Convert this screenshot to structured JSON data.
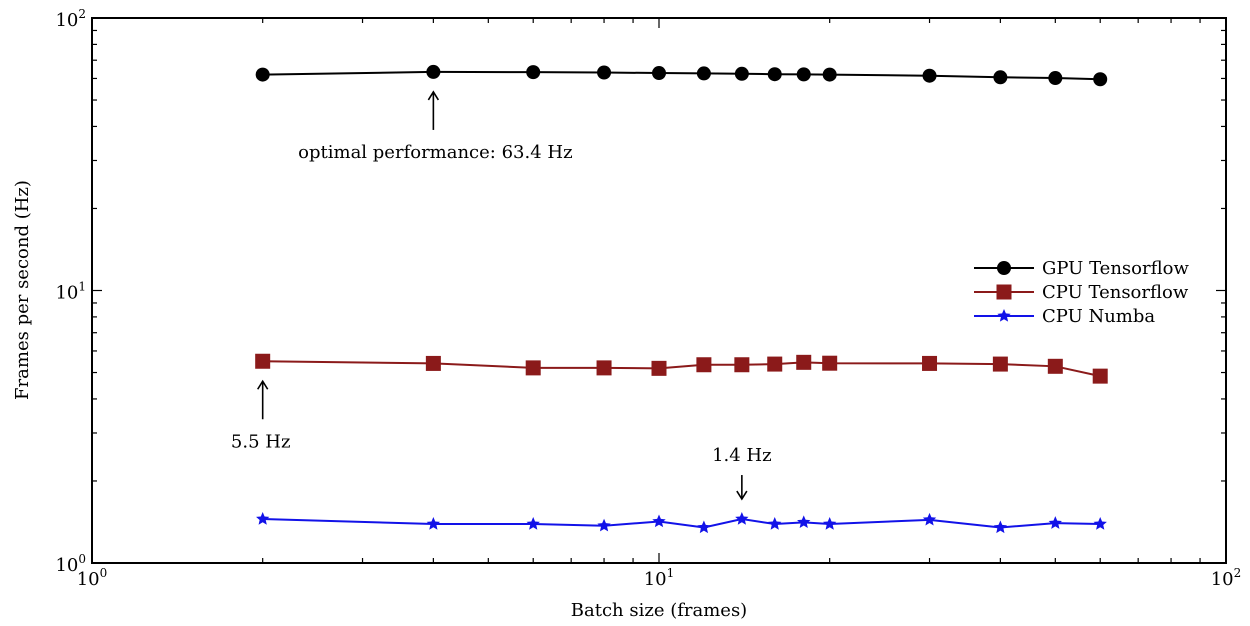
{
  "chart_data": {
    "type": "line",
    "title": "",
    "xlabel": "Batch size (frames)",
    "ylabel": "Frames per second (Hz)",
    "xscale": "log",
    "yscale": "log",
    "xlim": [
      1,
      100
    ],
    "ylim": [
      1,
      100
    ],
    "x_tick_labels": [
      {
        "value": 1,
        "base": "10",
        "exp": "0"
      },
      {
        "value": 10,
        "base": "10",
        "exp": "1"
      },
      {
        "value": 100,
        "base": "10",
        "exp": "2"
      }
    ],
    "y_tick_labels": [
      {
        "value": 1,
        "base": "10",
        "exp": "0"
      },
      {
        "value": 10,
        "base": "10",
        "exp": "1"
      },
      {
        "value": 100,
        "base": "10",
        "exp": "2"
      }
    ],
    "grid": false,
    "legend_position": "right-center",
    "series": [
      {
        "name": "GPU Tensorflow",
        "color": "#000000",
        "marker": "circle",
        "x": [
          2,
          4,
          6,
          8,
          10,
          12,
          14,
          16,
          18,
          20,
          30,
          40,
          50,
          60
        ],
        "y": [
          62,
          63.4,
          63.3,
          63.1,
          62.8,
          62.6,
          62.4,
          62.2,
          62.1,
          62.0,
          61.4,
          60.6,
          60.2,
          59.6
        ]
      },
      {
        "name": "CPU Tensorflow",
        "color": "#8b1a1a",
        "marker": "square",
        "x": [
          2,
          4,
          6,
          8,
          10,
          12,
          14,
          16,
          18,
          20,
          30,
          40,
          50,
          60
        ],
        "y": [
          5.5,
          5.4,
          5.2,
          5.2,
          5.18,
          5.34,
          5.34,
          5.37,
          5.45,
          5.41,
          5.4,
          5.37,
          5.27,
          4.85
        ]
      },
      {
        "name": "CPU Numba",
        "color": "#1212e8",
        "marker": "star",
        "x": [
          2,
          4,
          6,
          8,
          10,
          12,
          14,
          16,
          18,
          20,
          30,
          40,
          50,
          60
        ],
        "y": [
          1.45,
          1.39,
          1.39,
          1.37,
          1.42,
          1.35,
          1.45,
          1.39,
          1.41,
          1.39,
          1.44,
          1.35,
          1.4,
          1.39
        ]
      }
    ],
    "annotations": [
      {
        "text": "optimal performance: 63.4 Hz",
        "point_x": 4,
        "point_y": 63.4,
        "arrow": "up"
      },
      {
        "text": "5.5 Hz",
        "point_x": 2,
        "point_y": 5.5,
        "arrow": "up"
      },
      {
        "text": "1.4 Hz",
        "point_x": 14,
        "point_y": 1.45,
        "arrow": "down"
      }
    ]
  }
}
